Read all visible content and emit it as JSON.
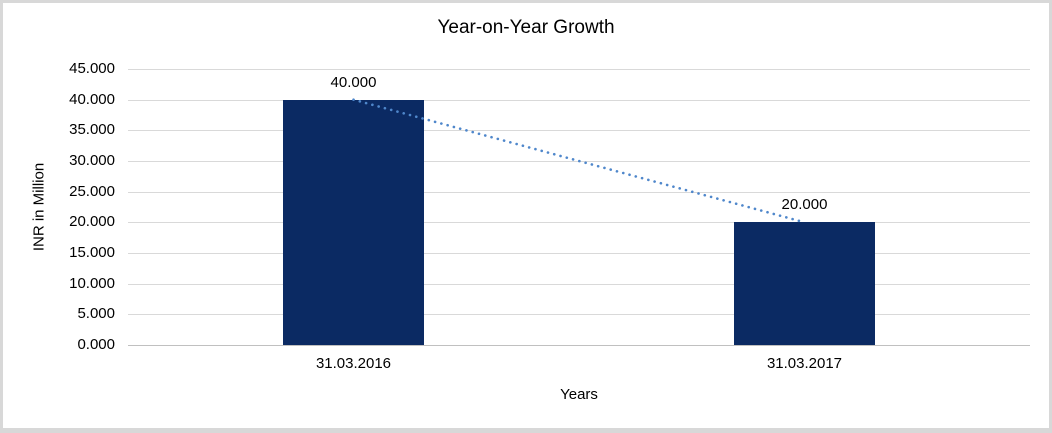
{
  "frame": {
    "background": "#ffffff",
    "border_color": "#d8d8d8"
  },
  "chart_data": {
    "type": "bar",
    "title": "Year-on-Year Growth",
    "xlabel": "Years",
    "ylabel": "INR in Million",
    "categories": [
      "31.03.2016",
      "31.03.2017"
    ],
    "values": [
      40000,
      20000
    ],
    "value_labels": [
      "40.000",
      "20.000"
    ],
    "ylim": [
      0,
      45000
    ],
    "ytick_step": 5000,
    "ytick_labels_top_to_bottom": [
      "45.000",
      "40.000",
      "35.000",
      "30.000",
      "25.000",
      "20.000",
      "15.000",
      "10.000",
      "5.000",
      "0.000"
    ],
    "grid": true,
    "legend": false,
    "trendline": {
      "style": "dotted",
      "connects": "tops of bars",
      "color": "#4f87cb"
    },
    "colors": {
      "bar": "#0b2a63",
      "gridline": "#d9d9d9",
      "axis_line": "#c0c0c0",
      "text": "#000000"
    }
  }
}
